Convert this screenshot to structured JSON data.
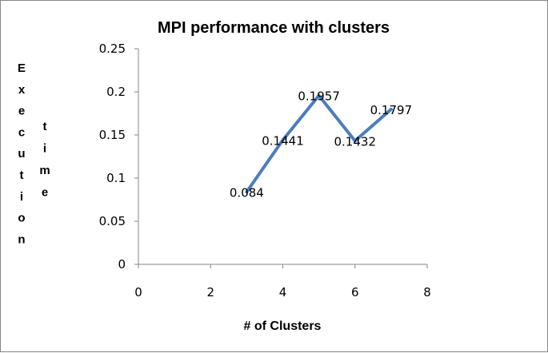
{
  "chart_data": {
    "type": "scatter",
    "title": "MPI performance with clusters",
    "xlabel": "# of Clusters",
    "ylabel_column1": [
      "E",
      "x",
      "e",
      "c",
      "u",
      "t",
      "i",
      "o",
      "n"
    ],
    "ylabel_column2": [
      "t",
      "i",
      "m",
      "e"
    ],
    "x": [
      3,
      4,
      5,
      6,
      7
    ],
    "y": [
      0.084,
      0.1441,
      0.1957,
      0.1432,
      0.1797
    ],
    "data_labels": [
      "0.084",
      "0.1441",
      "0.1957",
      "0.1432",
      "0.1797"
    ],
    "xlim": [
      0,
      8
    ],
    "ylim": [
      0,
      0.25
    ],
    "xticks": [
      "0",
      "2",
      "4",
      "6",
      "8"
    ],
    "yticks": [
      "0",
      "0.05",
      "0.1",
      "0.15",
      "0.2",
      "0.25"
    ],
    "grid": false,
    "legend": "none",
    "line_color": "#4A7EBB"
  }
}
